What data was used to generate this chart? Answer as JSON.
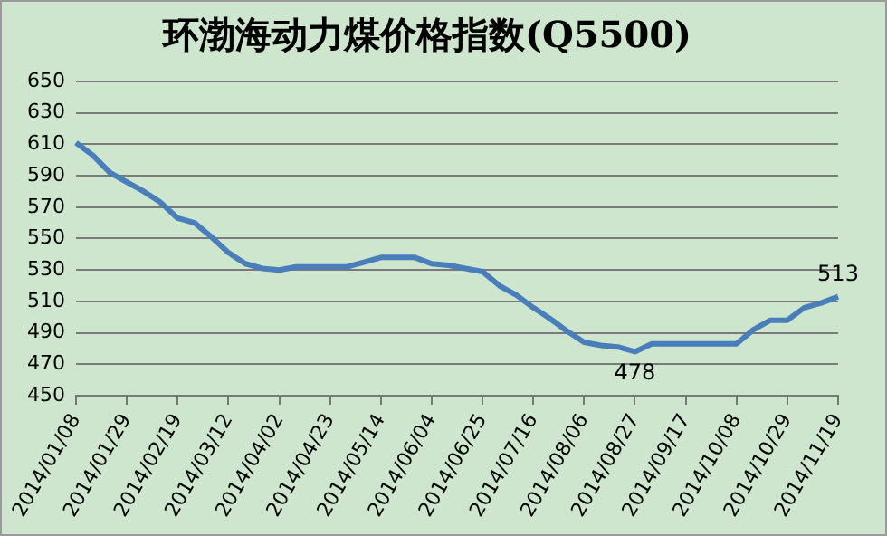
{
  "chart_data": {
    "type": "line",
    "title": "环渤海动力煤价格指数(Q5500)",
    "categories": [
      "2014/01/08",
      null,
      null,
      "2014/01/29",
      null,
      null,
      "2014/02/19",
      null,
      null,
      "2014/03/12",
      null,
      null,
      "2014/04/02",
      null,
      null,
      "2014/04/23",
      null,
      null,
      "2014/05/14",
      null,
      null,
      "2014/06/04",
      null,
      null,
      "2014/06/25",
      null,
      null,
      "2014/07/16",
      null,
      null,
      "2014/08/06",
      null,
      null,
      "2014/08/27",
      null,
      null,
      "2014/09/17",
      null,
      null,
      "2014/10/08",
      null,
      null,
      "2014/10/29",
      null,
      null,
      "2014/11/19"
    ],
    "series": [
      {
        "color": "#4a7ebb",
        "values": [
          611,
          603,
          592,
          586,
          580,
          573,
          563,
          560,
          551,
          541,
          534,
          531,
          530,
          532,
          532,
          532,
          532,
          535,
          538,
          538,
          538,
          534,
          533,
          531,
          529,
          520,
          514,
          506,
          499,
          491,
          484,
          482,
          481,
          478,
          483,
          483,
          483,
          483,
          483,
          483,
          492,
          498,
          498,
          506,
          509,
          513
        ],
        "value_labels": [
          null,
          null,
          null,
          null,
          null,
          null,
          null,
          null,
          null,
          null,
          null,
          null,
          null,
          null,
          null,
          null,
          null,
          null,
          null,
          null,
          null,
          null,
          null,
          null,
          null,
          null,
          null,
          null,
          null,
          null,
          null,
          null,
          null,
          "478",
          null,
          null,
          null,
          null,
          null,
          null,
          null,
          null,
          null,
          null,
          null,
          "513"
        ]
      }
    ],
    "ylim": [
      450,
      650
    ],
    "yticks": [
      450,
      470,
      490,
      510,
      530,
      550,
      570,
      590,
      610,
      630,
      650
    ],
    "grid": "y",
    "legend": false,
    "marker": "none",
    "line_style": "solid"
  }
}
